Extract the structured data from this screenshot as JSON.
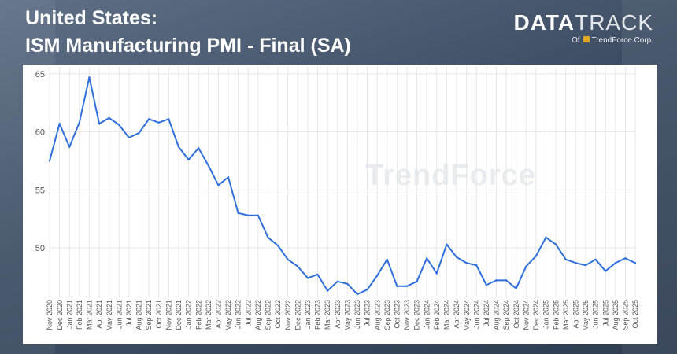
{
  "header": {
    "title_line1": "United States:",
    "title_line2": "ISM Manufacturing PMI - Final (SA)"
  },
  "logo": {
    "wordmark_bold": "DATA",
    "wordmark_light": "TRACK",
    "sub_prefix": "Of",
    "sub_brand": "TrendForce Corp."
  },
  "watermark": "TrendForce",
  "colors": {
    "line": "#2f6fdb",
    "grid": "#e6e6e6",
    "axis_text": "#555555"
  },
  "chart_data": {
    "type": "line",
    "title": "ISM Manufacturing PMI - Final (SA)",
    "xlabel": "",
    "ylabel": "",
    "ylim": [
      45.8,
      65.6
    ],
    "yticks": [
      50,
      55,
      60,
      65
    ],
    "grid": true,
    "x": [
      "Nov 2020",
      "Dec 2020",
      "Jan 2021",
      "Feb 2021",
      "Mar 2021",
      "Apr 2021",
      "May 2021",
      "Jun 2021",
      "Jul 2021",
      "Aug 2021",
      "Sep 2021",
      "Oct 2021",
      "Nov 2021",
      "Dec 2021",
      "Jan 2022",
      "Feb 2022",
      "Mar 2022",
      "Apr 2022",
      "May 2022",
      "Jun 2022",
      "Jul 2022",
      "Aug 2022",
      "Sep 2022",
      "Oct 2022",
      "Nov 2022",
      "Dec 2022",
      "Jan 2023",
      "Feb 2023",
      "Mar 2023",
      "Apr 2023",
      "May 2023",
      "Jun 2023",
      "Jul 2023",
      "Aug 2023",
      "Sep 2023",
      "Oct 2023",
      "Nov 2023",
      "Dec 2023",
      "Jan 2024",
      "Feb 2024",
      "Mar 2024",
      "Apr 2024",
      "May 2024",
      "Jun 2024",
      "Jul 2024",
      "Aug 2024",
      "Sep 2024",
      "Oct 2024",
      "Nov 2024",
      "Dec 2024",
      "Jan 2025",
      "Feb 2025",
      "Mar 2025",
      "Apr 2025",
      "May 2025",
      "Jun 2025",
      "Jul 2025",
      "Aug 2025",
      "Sep 2025",
      "Oct 2025"
    ],
    "series": [
      {
        "values": [
          57.5,
          60.7,
          58.7,
          60.8,
          64.7,
          60.7,
          61.2,
          60.6,
          59.5,
          59.9,
          61.1,
          60.8,
          61.1,
          58.7,
          57.6,
          58.6,
          57.1,
          55.4,
          56.1,
          53.0,
          52.8,
          52.8,
          50.9,
          50.2,
          49.0,
          48.4,
          47.4,
          47.7,
          46.3,
          47.1,
          46.9,
          46.0,
          46.4,
          47.6,
          49.0,
          46.7,
          46.7,
          47.1,
          49.1,
          47.8,
          50.3,
          49.2,
          48.7,
          48.5,
          46.8,
          47.2,
          47.2,
          46.5,
          48.4,
          49.3,
          50.9,
          50.3,
          49.0,
          48.7,
          48.5,
          49.0,
          48.0,
          48.7,
          49.1,
          48.7
        ]
      }
    ]
  }
}
